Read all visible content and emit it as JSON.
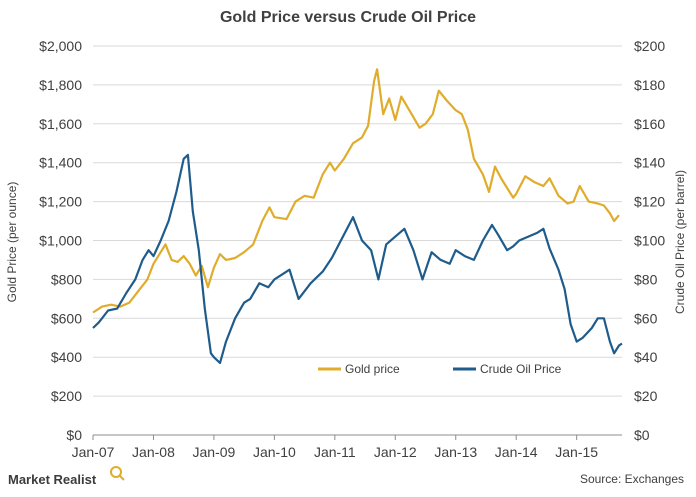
{
  "chart_data": {
    "type": "line",
    "title": "Gold Price versus Crude Oil Price",
    "ylabel_left": "Gold Price (per ounce)",
    "ylabel_right": "Crude Oil Price (per barrel)",
    "ylim_left": [
      0,
      2000
    ],
    "ylim_right": [
      0,
      200
    ],
    "yticks_left": [
      "$0",
      "$200",
      "$400",
      "$600",
      "$800",
      "$1,000",
      "$1,200",
      "$1,400",
      "$1,600",
      "$1,800",
      "$2,000"
    ],
    "yticks_right": [
      "$0",
      "$20",
      "$40",
      "$60",
      "$80",
      "$100",
      "$120",
      "$140",
      "$160",
      "$180",
      "$200"
    ],
    "xlim": [
      2007.0,
      2015.75
    ],
    "xticks": [
      {
        "label": "Jan-07",
        "x": 2007
      },
      {
        "label": "Jan-08",
        "x": 2008
      },
      {
        "label": "Jan-09",
        "x": 2009
      },
      {
        "label": "Jan-10",
        "x": 2010
      },
      {
        "label": "Jan-11",
        "x": 2011
      },
      {
        "label": "Jan-12",
        "x": 2012
      },
      {
        "label": "Jan-13",
        "x": 2013
      },
      {
        "label": "Jan-14",
        "x": 2014
      },
      {
        "label": "Jan-15",
        "x": 2015
      }
    ],
    "grid": true,
    "legend_position": "bottom-center",
    "series": [
      {
        "name": "Gold price",
        "axis": "left",
        "color": "#E0AC2C",
        "points": [
          [
            2007.0,
            630
          ],
          [
            2007.15,
            660
          ],
          [
            2007.3,
            670
          ],
          [
            2007.45,
            660
          ],
          [
            2007.6,
            680
          ],
          [
            2007.75,
            740
          ],
          [
            2007.9,
            800
          ],
          [
            2008.0,
            880
          ],
          [
            2008.1,
            930
          ],
          [
            2008.2,
            980
          ],
          [
            2008.3,
            900
          ],
          [
            2008.4,
            890
          ],
          [
            2008.5,
            920
          ],
          [
            2008.6,
            880
          ],
          [
            2008.7,
            820
          ],
          [
            2008.8,
            870
          ],
          [
            2008.9,
            760
          ],
          [
            2009.0,
            860
          ],
          [
            2009.1,
            930
          ],
          [
            2009.2,
            900
          ],
          [
            2009.35,
            910
          ],
          [
            2009.5,
            940
          ],
          [
            2009.65,
            980
          ],
          [
            2009.8,
            1100
          ],
          [
            2009.92,
            1170
          ],
          [
            2010.0,
            1120
          ],
          [
            2010.2,
            1110
          ],
          [
            2010.35,
            1200
          ],
          [
            2010.5,
            1230
          ],
          [
            2010.65,
            1220
          ],
          [
            2010.8,
            1340
          ],
          [
            2010.92,
            1400
          ],
          [
            2011.0,
            1360
          ],
          [
            2011.15,
            1420
          ],
          [
            2011.3,
            1500
          ],
          [
            2011.45,
            1530
          ],
          [
            2011.55,
            1590
          ],
          [
            2011.65,
            1820
          ],
          [
            2011.7,
            1880
          ],
          [
            2011.8,
            1650
          ],
          [
            2011.9,
            1730
          ],
          [
            2012.0,
            1620
          ],
          [
            2012.1,
            1740
          ],
          [
            2012.25,
            1660
          ],
          [
            2012.4,
            1580
          ],
          [
            2012.5,
            1600
          ],
          [
            2012.62,
            1650
          ],
          [
            2012.72,
            1770
          ],
          [
            2012.85,
            1720
          ],
          [
            2013.0,
            1670
          ],
          [
            2013.1,
            1650
          ],
          [
            2013.2,
            1570
          ],
          [
            2013.3,
            1420
          ],
          [
            2013.45,
            1340
          ],
          [
            2013.55,
            1250
          ],
          [
            2013.65,
            1380
          ],
          [
            2013.75,
            1320
          ],
          [
            2013.85,
            1270
          ],
          [
            2013.95,
            1220
          ],
          [
            2014.0,
            1240
          ],
          [
            2014.15,
            1330
          ],
          [
            2014.3,
            1300
          ],
          [
            2014.45,
            1280
          ],
          [
            2014.55,
            1320
          ],
          [
            2014.7,
            1230
          ],
          [
            2014.85,
            1190
          ],
          [
            2014.95,
            1200
          ],
          [
            2015.05,
            1280
          ],
          [
            2015.2,
            1200
          ],
          [
            2015.35,
            1190
          ],
          [
            2015.45,
            1180
          ],
          [
            2015.55,
            1140
          ],
          [
            2015.62,
            1100
          ],
          [
            2015.7,
            1130
          ]
        ]
      },
      {
        "name": "Crude Oil Price",
        "axis": "right",
        "color": "#1F5C8B",
        "points": [
          [
            2007.0,
            55
          ],
          [
            2007.1,
            58
          ],
          [
            2007.25,
            64
          ],
          [
            2007.4,
            65
          ],
          [
            2007.55,
            73
          ],
          [
            2007.7,
            80
          ],
          [
            2007.82,
            90
          ],
          [
            2007.92,
            95
          ],
          [
            2008.0,
            92
          ],
          [
            2008.12,
            100
          ],
          [
            2008.25,
            110
          ],
          [
            2008.38,
            125
          ],
          [
            2008.5,
            142
          ],
          [
            2008.57,
            144
          ],
          [
            2008.65,
            115
          ],
          [
            2008.75,
            95
          ],
          [
            2008.85,
            65
          ],
          [
            2008.95,
            42
          ],
          [
            2009.0,
            40
          ],
          [
            2009.1,
            37
          ],
          [
            2009.2,
            48
          ],
          [
            2009.35,
            60
          ],
          [
            2009.5,
            68
          ],
          [
            2009.6,
            70
          ],
          [
            2009.75,
            78
          ],
          [
            2009.9,
            76
          ],
          [
            2010.0,
            80
          ],
          [
            2010.25,
            85
          ],
          [
            2010.4,
            70
          ],
          [
            2010.6,
            78
          ],
          [
            2010.8,
            84
          ],
          [
            2010.95,
            91
          ],
          [
            2011.1,
            100
          ],
          [
            2011.3,
            112
          ],
          [
            2011.45,
            100
          ],
          [
            2011.6,
            95
          ],
          [
            2011.72,
            80
          ],
          [
            2011.85,
            98
          ],
          [
            2012.0,
            102
          ],
          [
            2012.15,
            106
          ],
          [
            2012.3,
            95
          ],
          [
            2012.45,
            80
          ],
          [
            2012.6,
            94
          ],
          [
            2012.75,
            90
          ],
          [
            2012.9,
            88
          ],
          [
            2013.0,
            95
          ],
          [
            2013.15,
            92
          ],
          [
            2013.3,
            90
          ],
          [
            2013.45,
            100
          ],
          [
            2013.6,
            108
          ],
          [
            2013.7,
            103
          ],
          [
            2013.85,
            95
          ],
          [
            2013.95,
            97
          ],
          [
            2014.05,
            100
          ],
          [
            2014.2,
            102
          ],
          [
            2014.35,
            104
          ],
          [
            2014.45,
            106
          ],
          [
            2014.55,
            96
          ],
          [
            2014.7,
            85
          ],
          [
            2014.8,
            75
          ],
          [
            2014.9,
            57
          ],
          [
            2015.0,
            48
          ],
          [
            2015.1,
            50
          ],
          [
            2015.25,
            55
          ],
          [
            2015.35,
            60
          ],
          [
            2015.45,
            60
          ],
          [
            2015.55,
            48
          ],
          [
            2015.62,
            42
          ],
          [
            2015.7,
            46
          ],
          [
            2015.75,
            47
          ]
        ]
      }
    ]
  },
  "source": "Source: Exchanges",
  "brand": "Market Realist"
}
